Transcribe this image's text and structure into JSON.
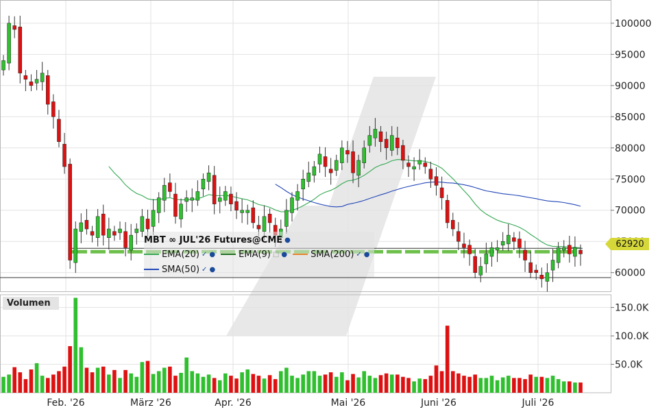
{
  "chart_data": {
    "type": "candlestick",
    "title": "MBT ∞ JUL'26 Futures@CME",
    "months": [
      "Feb. '26",
      "März '26",
      "Apr. '26",
      "Mai '26",
      "Juni '26",
      "Juli '26"
    ],
    "price_axis": {
      "ticks": [
        60000,
        65000,
        70000,
        75000,
        80000,
        85000,
        90000,
        95000,
        100000
      ],
      "ylim": [
        57000,
        103500
      ]
    },
    "volume_axis": {
      "label": "Volumen",
      "ticks": [
        "50.0K",
        "100.0K",
        "150.0K"
      ],
      "tick_values": [
        50000,
        100000,
        150000
      ],
      "ylim": [
        0,
        170000
      ]
    },
    "last_price": "62920",
    "last_price_color": "#d6d83a",
    "up_color": "#2fbf2f",
    "down_color": "#dd1111",
    "indicators": [
      {
        "name": "EMA(20)",
        "color": "#33a852"
      },
      {
        "name": "EMA(9)",
        "color": "#1f6f1f"
      },
      {
        "name": "SMA(200)",
        "color": "#e8822a"
      },
      {
        "name": "SMA(50)",
        "color": "#2246b8"
      }
    ],
    "support_line_level": 63900,
    "candles_close": [
      94000,
      100000,
      99000,
      92000,
      91000,
      90000,
      91000,
      92000,
      87000,
      85000,
      81000,
      77000,
      62000,
      67000,
      68000,
      67000,
      66000,
      69000,
      66000,
      67000,
      66000,
      67000,
      64000,
      66000,
      67000,
      69000,
      67000,
      70000,
      72000,
      74000,
      73000,
      69000,
      71000,
      72000,
      72000,
      73000,
      75000,
      76000,
      71000,
      72000,
      73000,
      71000,
      70000,
      70000,
      70000,
      68000,
      67000,
      69000,
      68000,
      66000,
      67000,
      70000,
      72000,
      73000,
      75000,
      76000,
      77000,
      79000,
      77000,
      76000,
      78000,
      80000,
      79000,
      76000,
      78000,
      80000,
      82000,
      83000,
      81000,
      80000,
      82000,
      80000,
      78000,
      77000,
      77000,
      78000,
      77000,
      75000,
      74000,
      72000,
      68000,
      67000,
      65000,
      64000,
      63000,
      60000,
      61000,
      63000,
      64000,
      64000,
      65000,
      66000,
      65000,
      64000,
      62000,
      60000,
      60000,
      59000,
      60000,
      62000,
      64000,
      64000,
      63000,
      64000,
      63000
    ],
    "ema20": [
      null,
      null,
      null,
      null,
      null,
      null,
      null,
      null,
      null,
      null,
      null,
      null,
      null,
      null,
      null,
      null,
      null,
      null,
      null,
      null,
      null,
      null,
      null,
      null,
      null,
      null,
      null,
      null,
      null,
      null,
      null,
      null,
      null,
      null,
      null,
      null,
      null,
      null,
      null,
      null,
      null,
      null,
      null,
      null,
      null,
      null,
      null,
      null,
      null,
      null,
      null,
      null,
      null,
      null,
      null,
      null,
      null,
      null,
      null,
      null,
      null,
      null,
      null,
      null,
      null,
      null,
      null,
      null,
      null,
      null,
      null,
      null,
      null,
      null,
      null,
      null,
      null,
      null,
      null,
      null,
      null,
      null,
      null,
      null,
      null,
      null,
      null,
      null,
      null,
      null,
      null,
      null,
      null,
      null,
      null,
      null,
      null,
      null,
      null,
      null,
      null,
      null,
      null,
      null,
      null
    ],
    "volumes": [
      28000,
      32000,
      45000,
      36000,
      24000,
      41000,
      52000,
      30000,
      26000,
      32000,
      38000,
      46000,
      82000,
      167000,
      80000,
      44000,
      36000,
      44000,
      46000,
      32000,
      40000,
      26000,
      40000,
      34000,
      28000,
      54000,
      56000,
      33000,
      38000,
      44000,
      46000,
      30000,
      35000,
      62000,
      38000,
      34000,
      28000,
      32000,
      26000,
      22000,
      34000,
      30000,
      25000,
      36000,
      41000,
      33000,
      30000,
      25000,
      31000,
      24000,
      38000,
      44000,
      30000,
      26000,
      32000,
      38000,
      38000,
      30000,
      32000,
      36000,
      28000,
      36000,
      22000,
      33000,
      27000,
      38000,
      30000,
      26000,
      31000,
      34000,
      32000,
      32000,
      28000,
      26000,
      20000,
      25000,
      24000,
      30000,
      48000,
      38000,
      118000,
      38000,
      34000,
      30000,
      28000,
      32000,
      26000,
      26000,
      30000,
      22000,
      27000,
      30000,
      26000,
      26000,
      24000,
      32000,
      28000,
      28000,
      26000,
      30000,
      24000,
      20000,
      20000,
      18000,
      18000
    ]
  }
}
